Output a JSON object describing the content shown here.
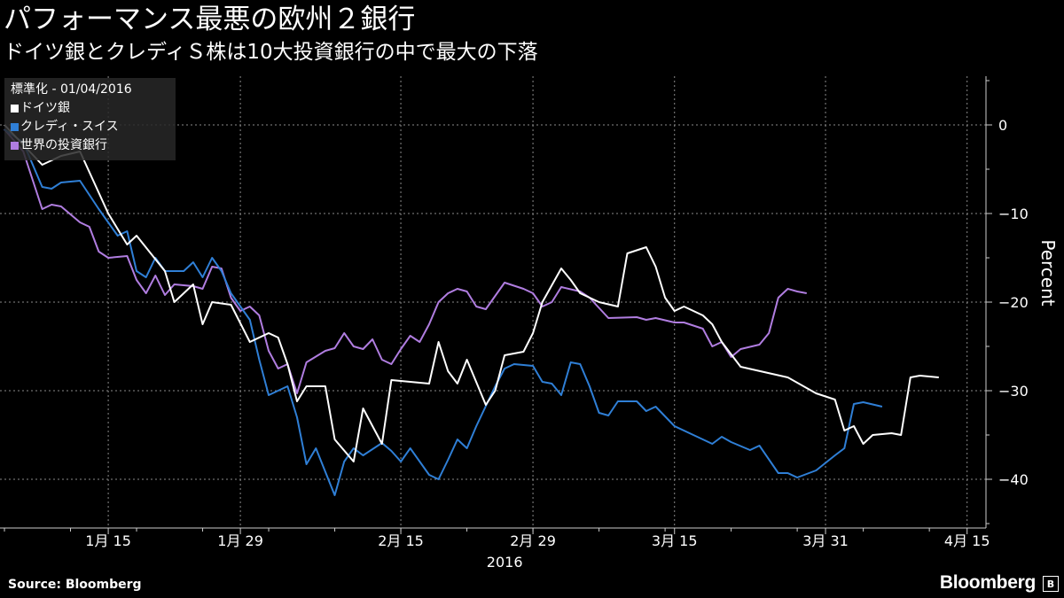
{
  "header": {
    "title": "パフォーマンス最悪の欧州２銀行",
    "subtitle": "ドイツ銀とクレディＳ株は10大投資銀行の中で最大の下落"
  },
  "legend": {
    "caption": "標準化 - 01/04/2016",
    "items": [
      {
        "label": "ドイツ銀",
        "color": "#ffffff"
      },
      {
        "label": "クレディ・スイス",
        "color": "#2f7fd6"
      },
      {
        "label": "世界の投資銀行",
        "color": "#b07de0"
      }
    ]
  },
  "footer": {
    "source": "Source: Bloomberg",
    "brand": "Bloomberg",
    "brand_icon": "bloomberg-terminal-icon"
  },
  "chart_data": {
    "type": "line",
    "title": "パフォーマンス最悪の欧州２銀行",
    "subtitle": "ドイツ銀とクレディＳ株は10大投資銀行の中で最大の下落",
    "ylabel": "Percent",
    "xlabel": "",
    "x_tick_labels": [
      {
        "day": 11,
        "label": "1月 15"
      },
      {
        "day": 25,
        "label": "1月 29"
      },
      {
        "day": 42,
        "label": "2月 15"
      },
      {
        "day": 56,
        "label": "2月 29"
      },
      {
        "day": 71,
        "label": "3月 15"
      },
      {
        "day": 87,
        "label": "3月 31"
      },
      {
        "day": 102,
        "label": "4月 15"
      }
    ],
    "year_label": "2016",
    "y_ticks": [
      0,
      -10,
      -20,
      -30,
      -40
    ],
    "ylim": [
      -45.5,
      5.5
    ],
    "xlim": [
      0,
      104
    ],
    "grid": true,
    "legend_position": "top-left",
    "series": [
      {
        "name": "ドイツ銀",
        "color": "#ffffff",
        "points": [
          [
            0,
            0
          ],
          [
            4,
            -4.5
          ],
          [
            6,
            -3.5
          ],
          [
            8,
            -3
          ],
          [
            11,
            -10
          ],
          [
            13,
            -13.5
          ],
          [
            14,
            -12.5
          ],
          [
            17,
            -16.5
          ],
          [
            18,
            -20
          ],
          [
            20,
            -18
          ],
          [
            21,
            -22.5
          ],
          [
            22,
            -20
          ],
          [
            24,
            -20.3
          ],
          [
            26,
            -24.5
          ],
          [
            28,
            -23.5
          ],
          [
            29,
            -24
          ],
          [
            30,
            -27
          ],
          [
            31,
            -31.2
          ],
          [
            32,
            -29.5
          ],
          [
            34,
            -29.5
          ],
          [
            35,
            -35.5
          ],
          [
            37,
            -38
          ],
          [
            38,
            -32
          ],
          [
            40,
            -36
          ],
          [
            41,
            -28.8
          ],
          [
            43,
            -29
          ],
          [
            45,
            -29.2
          ],
          [
            46,
            -24.5
          ],
          [
            47,
            -27.8
          ],
          [
            48,
            -29.2
          ],
          [
            49,
            -26.5
          ],
          [
            51,
            -31.6
          ],
          [
            52,
            -30
          ],
          [
            53,
            -26
          ],
          [
            55,
            -25.6
          ],
          [
            56,
            -23.5
          ],
          [
            57,
            -20
          ],
          [
            59,
            -16.2
          ],
          [
            60,
            -17.5
          ],
          [
            61,
            -19
          ],
          [
            63,
            -20
          ],
          [
            65,
            -20.5
          ],
          [
            66,
            -14.5
          ],
          [
            68,
            -13.8
          ],
          [
            69,
            -16
          ],
          [
            70,
            -19.5
          ],
          [
            71,
            -21
          ],
          [
            72,
            -20.5
          ],
          [
            74,
            -21.5
          ],
          [
            75,
            -22.5
          ],
          [
            76,
            -24.5
          ],
          [
            78,
            -27.3
          ],
          [
            83,
            -28.5
          ],
          [
            86,
            -30.3
          ],
          [
            88,
            -31
          ],
          [
            89,
            -34.5
          ],
          [
            90,
            -34
          ],
          [
            91,
            -36
          ],
          [
            92,
            -35
          ],
          [
            94,
            -34.8
          ],
          [
            95,
            -35
          ],
          [
            96,
            -28.5
          ],
          [
            97,
            -28.3
          ],
          [
            99,
            -28.5
          ]
        ]
      },
      {
        "name": "クレディ・スイス",
        "color": "#2f7fd6",
        "points": [
          [
            0,
            -0.5
          ],
          [
            2,
            -2
          ],
          [
            4,
            -7
          ],
          [
            5,
            -7.2
          ],
          [
            6,
            -6.5
          ],
          [
            8,
            -6.3
          ],
          [
            10,
            -9.5
          ],
          [
            12,
            -12.5
          ],
          [
            13,
            -12
          ],
          [
            14,
            -16.5
          ],
          [
            15,
            -17.2
          ],
          [
            16,
            -15
          ],
          [
            17,
            -16.5
          ],
          [
            19,
            -16.5
          ],
          [
            20,
            -15.5
          ],
          [
            21,
            -17.2
          ],
          [
            22,
            -15
          ],
          [
            23,
            -16.5
          ],
          [
            24,
            -19
          ],
          [
            26,
            -22
          ],
          [
            27,
            -26.5
          ],
          [
            28,
            -30.5
          ],
          [
            30,
            -29.5
          ],
          [
            31,
            -33
          ],
          [
            32,
            -38.3
          ],
          [
            33,
            -36.5
          ],
          [
            35,
            -41.8
          ],
          [
            36,
            -38
          ],
          [
            37,
            -36.5
          ],
          [
            38,
            -37.3
          ],
          [
            40,
            -35.9
          ],
          [
            41,
            -36.8
          ],
          [
            42,
            -38
          ],
          [
            43,
            -36.5
          ],
          [
            45,
            -39.5
          ],
          [
            46,
            -40
          ],
          [
            47,
            -37.8
          ],
          [
            48,
            -35.5
          ],
          [
            49,
            -36.5
          ],
          [
            50,
            -34
          ],
          [
            52,
            -29.5
          ],
          [
            53,
            -27.5
          ],
          [
            54,
            -27
          ],
          [
            56,
            -27.2
          ],
          [
            57,
            -29
          ],
          [
            58,
            -29.2
          ],
          [
            59,
            -30.5
          ],
          [
            60,
            -26.8
          ],
          [
            61,
            -27
          ],
          [
            62,
            -29.5
          ],
          [
            63,
            -32.5
          ],
          [
            64,
            -32.8
          ],
          [
            65,
            -31.2
          ],
          [
            67,
            -31.2
          ],
          [
            68,
            -32.3
          ],
          [
            69,
            -31.8
          ],
          [
            71,
            -34
          ],
          [
            73,
            -35
          ],
          [
            74,
            -35.5
          ],
          [
            75,
            -36
          ],
          [
            76,
            -35.2
          ],
          [
            77,
            -35.8
          ],
          [
            79,
            -36.7
          ],
          [
            80,
            -36.2
          ],
          [
            82,
            -39.3
          ],
          [
            83,
            -39.3
          ],
          [
            84,
            -39.8
          ],
          [
            86,
            -39
          ],
          [
            88,
            -37.3
          ],
          [
            89,
            -36.5
          ],
          [
            90,
            -31.5
          ],
          [
            91,
            -31.3
          ],
          [
            93,
            -31.8
          ]
        ]
      },
      {
        "name": "世界の投資銀行",
        "color": "#b07de0",
        "points": [
          [
            0,
            -0.5
          ],
          [
            2,
            -3
          ],
          [
            4,
            -9.5
          ],
          [
            5,
            -9
          ],
          [
            6,
            -9.2
          ],
          [
            8,
            -11
          ],
          [
            9,
            -11.5
          ],
          [
            10,
            -14.3
          ],
          [
            11,
            -15
          ],
          [
            13,
            -14.8
          ],
          [
            14,
            -17.5
          ],
          [
            15,
            -19
          ],
          [
            16,
            -17
          ],
          [
            17,
            -19.2
          ],
          [
            18,
            -18
          ],
          [
            20,
            -18.2
          ],
          [
            21,
            -18.5
          ],
          [
            22,
            -16
          ],
          [
            23,
            -16.2
          ],
          [
            24,
            -19.5
          ],
          [
            25,
            -21
          ],
          [
            26,
            -20.5
          ],
          [
            27,
            -21.5
          ],
          [
            28,
            -25.5
          ],
          [
            29,
            -27.5
          ],
          [
            30,
            -27
          ],
          [
            31,
            -30.3
          ],
          [
            32,
            -26.8
          ],
          [
            34,
            -25.5
          ],
          [
            35,
            -25.2
          ],
          [
            36,
            -23.5
          ],
          [
            37,
            -25
          ],
          [
            38,
            -25.3
          ],
          [
            39,
            -24.2
          ],
          [
            40,
            -26.5
          ],
          [
            41,
            -27
          ],
          [
            42,
            -25.3
          ],
          [
            43,
            -23.8
          ],
          [
            44,
            -24.5
          ],
          [
            45,
            -22.5
          ],
          [
            46,
            -20
          ],
          [
            47,
            -19
          ],
          [
            48,
            -18.5
          ],
          [
            49,
            -18.8
          ],
          [
            50,
            -20.5
          ],
          [
            51,
            -20.8
          ],
          [
            53,
            -17.8
          ],
          [
            55,
            -18.5
          ],
          [
            56,
            -19
          ],
          [
            57,
            -20.5
          ],
          [
            58,
            -20
          ],
          [
            59,
            -18.3
          ],
          [
            61,
            -18.8
          ],
          [
            62,
            -19.5
          ],
          [
            64,
            -21.8
          ],
          [
            67,
            -21.7
          ],
          [
            68,
            -22
          ],
          [
            69,
            -21.8
          ],
          [
            71,
            -22.3
          ],
          [
            72,
            -22.3
          ],
          [
            74,
            -23
          ],
          [
            75,
            -25
          ],
          [
            76,
            -24.5
          ],
          [
            77,
            -26.2
          ],
          [
            78,
            -25.3
          ],
          [
            80,
            -24.8
          ],
          [
            81,
            -23.5
          ],
          [
            82,
            -19.5
          ],
          [
            83,
            -18.5
          ],
          [
            84,
            -18.8
          ],
          [
            85,
            -19
          ]
        ]
      }
    ]
  }
}
